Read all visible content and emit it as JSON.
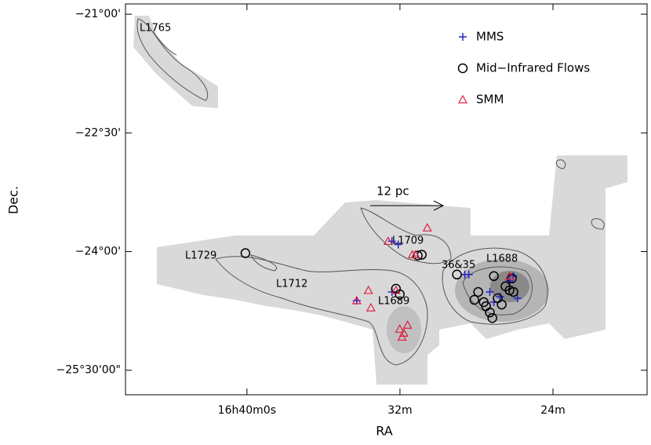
{
  "chart_data": {
    "type": "scatter",
    "x_label": "RA",
    "y_label": "Dec.",
    "xlim": [
      46.35,
      19.08
    ],
    "ylim": [
      -25.81,
      -20.87
    ],
    "xticks": [
      {
        "value": 40,
        "label": "16h40m0s"
      },
      {
        "value": 32,
        "label": "32m"
      },
      {
        "value": 24,
        "label": "24m"
      }
    ],
    "yticks": [
      {
        "value": -21,
        "label": "−21°00'"
      },
      {
        "value": -22.5,
        "label": "−22°30'"
      },
      {
        "value": -24,
        "label": "−24°00'"
      },
      {
        "value": -25.5,
        "label": "−25°30'00\""
      }
    ],
    "legend": "upper right",
    "annotations": [
      "L1765",
      "L1709",
      "L1729",
      "L1712",
      "L1689",
      "L1688",
      "36&35",
      "12 pc"
    ],
    "series": [
      {
        "name": "MMS",
        "color": "#2222cc",
        "marker": "plus",
        "x": [
          28.61,
          28.4,
          27.3,
          26.76,
          26.07,
          26.27,
          27.09,
          25.86,
          32.09,
          32.42,
          34.26,
          32.42
        ],
        "values": [
          -24.29,
          -24.29,
          -24.51,
          -24.57,
          -24.31,
          -24.37,
          -24.64,
          -24.59,
          -23.91,
          -23.87,
          -24.62,
          -24.51
        ]
      },
      {
        "name": "Mid−Infrared Flows",
        "color": "#000000",
        "marker": "circle",
        "x": [
          40.08,
          31.07,
          30.86,
          29.02,
          32.21,
          32.01,
          26.89,
          26.68,
          28.11,
          27.62,
          27.3,
          27.17,
          26.27,
          26.07,
          26.48,
          26.15,
          27.09,
          27.5,
          27.91
        ],
        "values": [
          -24.02,
          -24.05,
          -24.04,
          -24.29,
          -24.47,
          -24.54,
          -24.59,
          -24.67,
          -24.61,
          -24.64,
          -24.77,
          -24.84,
          -24.49,
          -24.51,
          -24.44,
          -24.34,
          -24.31,
          -24.69,
          -24.51
        ]
      },
      {
        "name": "SMM",
        "color": "#dd2244",
        "marker": "triangle",
        "x": [
          30.57,
          32.62,
          33.65,
          33.52,
          34.26,
          26.27,
          32.01,
          31.8,
          31.6,
          31.89,
          31.19,
          31.35,
          32.21
        ],
        "values": [
          -23.7,
          -23.87,
          -24.49,
          -24.71,
          -24.62,
          -24.31,
          -24.98,
          -25.03,
          -24.93,
          -25.08,
          -24.04,
          -24.04,
          -24.49
        ]
      }
    ]
  }
}
